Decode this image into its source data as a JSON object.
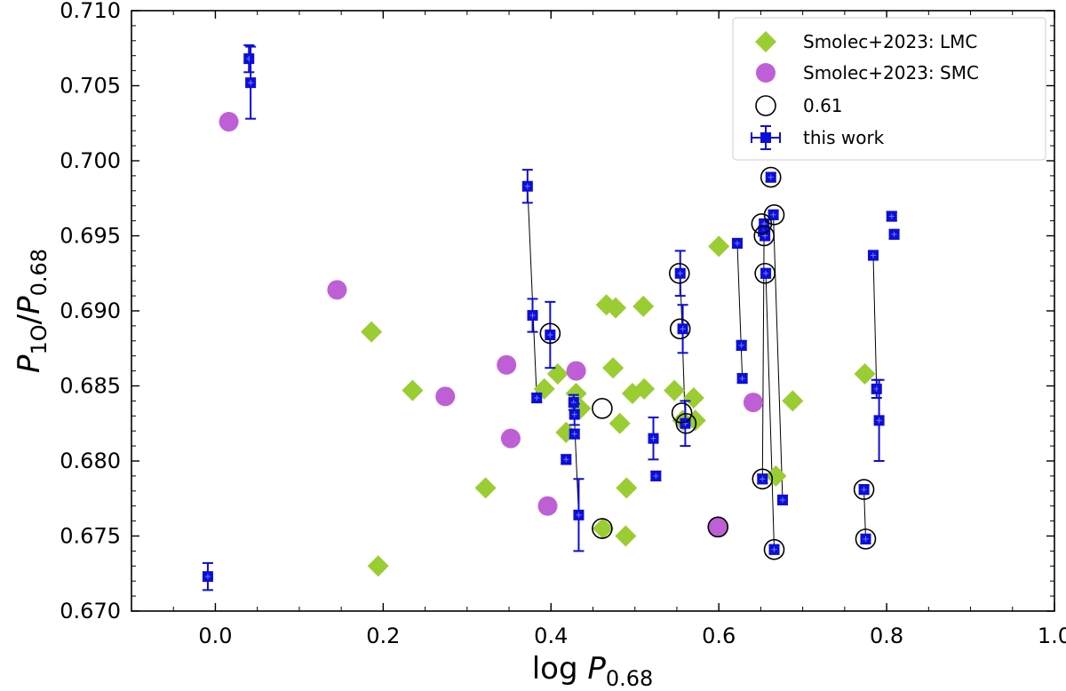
{
  "chart_data": {
    "type": "scatter",
    "xlabel_base": "log ",
    "xlabel_var": "P",
    "xlabel_sub": "0.68",
    "ylabel_num": "P",
    "ylabel_num_sub": "1O",
    "ylabel_slash": "/",
    "ylabel_den": "P",
    "ylabel_den_sub": "0.68",
    "xlim": [
      -0.1,
      1.0
    ],
    "ylim": [
      0.67,
      0.71
    ],
    "xticks": [
      0.0,
      0.2,
      0.4,
      0.6,
      0.8,
      1.0
    ],
    "xtick_labels": [
      "0.0",
      "0.2",
      "0.4",
      "0.6",
      "0.8",
      "1.0"
    ],
    "yticks": [
      0.67,
      0.675,
      0.68,
      0.685,
      0.69,
      0.695,
      0.7,
      0.705,
      0.71
    ],
    "ytick_labels": [
      "0.670",
      "0.675",
      "0.680",
      "0.685",
      "0.690",
      "0.695",
      "0.700",
      "0.705",
      "0.710"
    ],
    "legend_position": "top-right",
    "legend": [
      "Smolec+2023: LMC",
      "Smolec+2023: SMC",
      "0.61",
      "this work"
    ],
    "colors": {
      "lmc": "#9acd32",
      "smc": "#bf5fd6",
      "this_work": "#0d0dd9",
      "ring": "#000000",
      "link": "#000000"
    },
    "series": [
      {
        "name": "Smolec+2023: LMC",
        "marker": "diamond",
        "x": [
          0.186,
          0.194,
          0.235,
          0.322,
          0.392,
          0.408,
          0.418,
          0.43,
          0.435,
          0.462,
          0.466,
          0.474,
          0.477,
          0.482,
          0.489,
          0.49,
          0.497,
          0.51,
          0.511,
          0.547,
          0.557,
          0.57,
          0.572,
          0.6,
          0.668,
          0.688,
          0.774
        ],
        "y": [
          0.6886,
          0.673,
          0.6847,
          0.6782,
          0.6848,
          0.6858,
          0.6819,
          0.6845,
          0.6835,
          0.6755,
          0.6904,
          0.6862,
          0.6902,
          0.6825,
          0.675,
          0.6782,
          0.6845,
          0.6903,
          0.6848,
          0.6847,
          0.6827,
          0.6842,
          0.6827,
          0.6943,
          0.679,
          0.684,
          0.6858
        ]
      },
      {
        "name": "Smolec+2023: SMC",
        "marker": "circle",
        "x": [
          0.016,
          0.145,
          0.274,
          0.347,
          0.352,
          0.396,
          0.43,
          0.599,
          0.641
        ],
        "y": [
          0.7026,
          0.6914,
          0.6843,
          0.6864,
          0.6815,
          0.677,
          0.686,
          0.6756,
          0.6839
        ]
      },
      {
        "name": "0.61",
        "marker": "open-circle",
        "x": [
          0.399,
          0.461,
          0.461,
          0.553,
          0.554,
          0.556,
          0.561,
          0.599,
          0.651,
          0.652,
          0.654,
          0.655,
          0.662,
          0.666,
          0.666,
          0.773,
          0.775
        ],
        "y": [
          0.6885,
          0.6835,
          0.6755,
          0.6925,
          0.6888,
          0.6832,
          0.6825,
          0.6756,
          0.6958,
          0.6788,
          0.695,
          0.6925,
          0.6989,
          0.6964,
          0.6741,
          0.6781,
          0.6748
        ]
      },
      {
        "name": "this work",
        "marker": "square-errorbar",
        "points": [
          {
            "x": -0.009,
            "y": 0.6723,
            "yerr": 0.0009
          },
          {
            "x": 0.04,
            "y": 0.7068,
            "yerr": 0.0009
          },
          {
            "x": 0.042,
            "y": 0.7052,
            "yerr": 0.0024
          },
          {
            "x": 0.372,
            "y": 0.6983,
            "yerr": 0.0011
          },
          {
            "x": 0.378,
            "y": 0.6897,
            "yerr": 0.0011
          },
          {
            "x": 0.383,
            "y": 0.6842,
            "yerr": 0.0003
          },
          {
            "x": 0.399,
            "y": 0.6884,
            "yerr": 0.0022
          },
          {
            "x": 0.418,
            "y": 0.6801,
            "yerr": 0.0003
          },
          {
            "x": 0.427,
            "y": 0.6839,
            "yerr": 0.0005
          },
          {
            "x": 0.428,
            "y": 0.6831,
            "yerr": 0.0007
          },
          {
            "x": 0.428,
            "y": 0.6818,
            "yerr": 0.0003
          },
          {
            "x": 0.433,
            "y": 0.6764,
            "yerr": 0.0024
          },
          {
            "x": 0.522,
            "y": 0.6815,
            "yerr": 0.0014
          },
          {
            "x": 0.525,
            "y": 0.679,
            "yerr": 0.0003
          },
          {
            "x": 0.554,
            "y": 0.6925,
            "yerr": 0.0015
          },
          {
            "x": 0.557,
            "y": 0.6888,
            "yerr": 0.0016
          },
          {
            "x": 0.56,
            "y": 0.6825,
            "yerr": 0.0015
          },
          {
            "x": 0.622,
            "y": 0.6945,
            "yerr": 0.0003
          },
          {
            "x": 0.627,
            "y": 0.6877,
            "yerr": 0.0003
          },
          {
            "x": 0.628,
            "y": 0.6855,
            "yerr": 0.0003
          },
          {
            "x": 0.652,
            "y": 0.6788,
            "yerr": 0.0003
          },
          {
            "x": 0.653,
            "y": 0.6953,
            "yerr": 0.0003
          },
          {
            "x": 0.654,
            "y": 0.6958,
            "yerr": 0.0003
          },
          {
            "x": 0.655,
            "y": 0.695,
            "yerr": 0.0003
          },
          {
            "x": 0.656,
            "y": 0.6925,
            "yerr": 0.0003
          },
          {
            "x": 0.662,
            "y": 0.6989,
            "yerr": 0.0003
          },
          {
            "x": 0.665,
            "y": 0.6964,
            "yerr": 0.0003
          },
          {
            "x": 0.666,
            "y": 0.6741,
            "yerr": 0.0003
          },
          {
            "x": 0.676,
            "y": 0.6774,
            "yerr": 0.0003
          },
          {
            "x": 0.773,
            "y": 0.6781,
            "yerr": 0.0003
          },
          {
            "x": 0.775,
            "y": 0.6748,
            "yerr": 0.0003
          },
          {
            "x": 0.784,
            "y": 0.6937,
            "yerr": 0.0003
          },
          {
            "x": 0.788,
            "y": 0.6848,
            "yerr": 0.0006
          },
          {
            "x": 0.791,
            "y": 0.6827,
            "yerr": 0.0027
          },
          {
            "x": 0.806,
            "y": 0.6963,
            "yerr": 0.0003
          },
          {
            "x": 0.809,
            "y": 0.6951,
            "yerr": 0.0003
          }
        ]
      }
    ],
    "connections": [
      [
        [
          0.372,
          0.6983
        ],
        [
          0.383,
          0.6842
        ]
      ],
      [
        [
          0.427,
          0.6839
        ],
        [
          0.433,
          0.6764
        ]
      ],
      [
        [
          0.554,
          0.6925
        ],
        [
          0.56,
          0.6825
        ]
      ],
      [
        [
          0.622,
          0.6945
        ],
        [
          0.628,
          0.6855
        ]
      ],
      [
        [
          0.654,
          0.6958
        ],
        [
          0.652,
          0.6788
        ]
      ],
      [
        [
          0.656,
          0.6925
        ],
        [
          0.666,
          0.6741
        ]
      ],
      [
        [
          0.665,
          0.6964
        ],
        [
          0.676,
          0.6774
        ]
      ],
      [
        [
          0.773,
          0.6781
        ],
        [
          0.775,
          0.6748
        ]
      ],
      [
        [
          0.784,
          0.6937
        ],
        [
          0.788,
          0.6848
        ]
      ]
    ]
  }
}
